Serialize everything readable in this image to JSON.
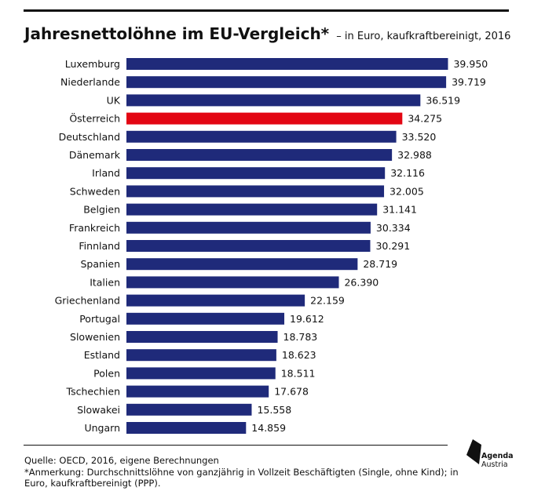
{
  "header": {
    "title": "Jahresnettolöhne im EU-Vergleich*",
    "subtitle": "– in Euro, kaufkraftbereinigt, 2016"
  },
  "chart_data": {
    "type": "bar",
    "orientation": "horizontal",
    "categories": [
      "Luxemburg",
      "Niederlande",
      "UK",
      "Österreich",
      "Deutschland",
      "Dänemark",
      "Irland",
      "Schweden",
      "Belgien",
      "Frankreich",
      "Finnland",
      "Spanien",
      "Italien",
      "Griechenland",
      "Portugal",
      "Slowenien",
      "Estland",
      "Polen",
      "Tschechien",
      "Slowakei",
      "Ungarn"
    ],
    "values": [
      39950,
      39719,
      36519,
      34275,
      33520,
      32988,
      32116,
      32005,
      31141,
      30334,
      30291,
      28719,
      26390,
      22159,
      19612,
      18783,
      18623,
      18511,
      17678,
      15558,
      14859
    ],
    "value_labels": [
      "39.950",
      "39.719",
      "36.519",
      "34.275",
      "33.520",
      "32.988",
      "32.116",
      "32.005",
      "31.141",
      "30.334",
      "30.291",
      "28.719",
      "26.390",
      "22.159",
      "19.612",
      "18.783",
      "18.623",
      "18.511",
      "17.678",
      "15.558",
      "14.859"
    ],
    "highlight": "Österreich",
    "colors": {
      "bar": "#1f2a7a",
      "highlight": "#e30613"
    },
    "xlim": [
      0,
      40000
    ],
    "grid": false,
    "legend": "none"
  },
  "footer": {
    "source": "Quelle: OECD, 2016, eigene Berechnungen",
    "note": "*Anmerkung: Durchschnittslöhne von ganzjährig in Vollzeit Beschäftigten (Single, ohne Kind); in Euro, kaufkraftbereinigt (PPP)."
  },
  "logo": {
    "line1": "Agenda",
    "line2": "Austria",
    "icon": "agenda-austria-logo-icon"
  }
}
